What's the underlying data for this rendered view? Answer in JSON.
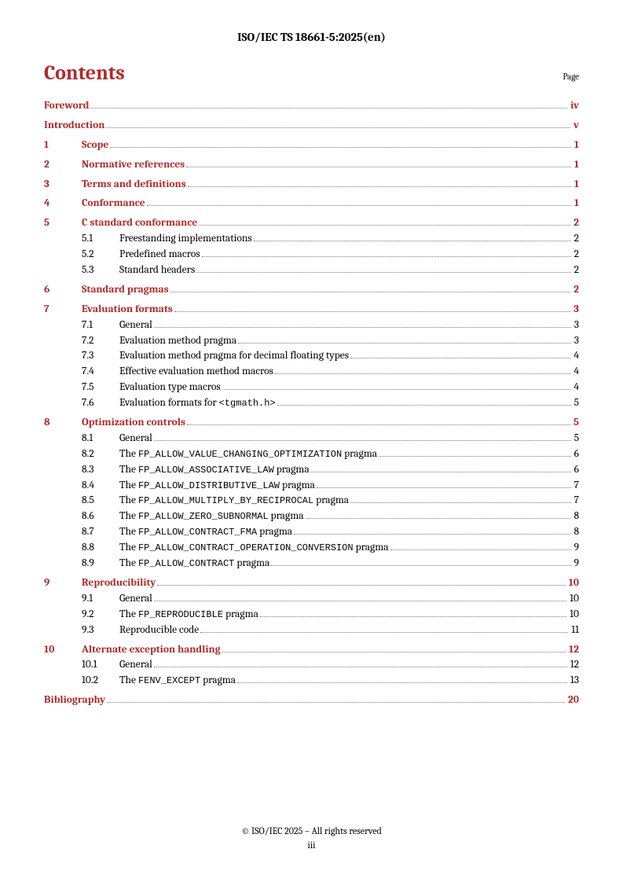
{
  "doc_id": "ISO/IEC TS 18661-5:2025(en)",
  "contents_title": "Contents",
  "page_label": "Page",
  "copyright": "© ISO/IEC 2025 – All rights reserved",
  "page_number": "iii",
  "toc": {
    "front": [
      {
        "title": "Foreword",
        "page": "iv"
      },
      {
        "title": "Introduction",
        "page": "v"
      }
    ],
    "sections": [
      {
        "num": "1",
        "title": "Scope",
        "page": "1",
        "subs": []
      },
      {
        "num": "2",
        "title": "Normative references",
        "page": "1",
        "subs": []
      },
      {
        "num": "3",
        "title": "Terms and definitions",
        "page": "1",
        "subs": []
      },
      {
        "num": "4",
        "title": "Conformance",
        "page": "1",
        "subs": []
      },
      {
        "num": "5",
        "title": "C standard conformance",
        "page": "2",
        "subs": [
          {
            "num": "5.1",
            "parts": [
              {
                "t": "Freestanding implementations"
              }
            ],
            "page": "2"
          },
          {
            "num": "5.2",
            "parts": [
              {
                "t": "Predefined macros"
              }
            ],
            "page": "2"
          },
          {
            "num": "5.3",
            "parts": [
              {
                "t": "Standard headers"
              }
            ],
            "page": "2"
          }
        ]
      },
      {
        "num": "6",
        "title": "Standard pragmas",
        "page": "2",
        "subs": []
      },
      {
        "num": "7",
        "title": "Evaluation formats",
        "page": "3",
        "subs": [
          {
            "num": "7.1",
            "parts": [
              {
                "t": "General"
              }
            ],
            "page": "3"
          },
          {
            "num": "7.2",
            "parts": [
              {
                "t": "Evaluation method pragma"
              }
            ],
            "page": "3"
          },
          {
            "num": "7.3",
            "parts": [
              {
                "t": "Evaluation method pragma for decimal floating types"
              }
            ],
            "page": "4"
          },
          {
            "num": "7.4",
            "parts": [
              {
                "t": "Effective evaluation method macros"
              }
            ],
            "page": "4"
          },
          {
            "num": "7.5",
            "parts": [
              {
                "t": "Evaluation type macros"
              }
            ],
            "page": "4"
          },
          {
            "num": "7.6",
            "parts": [
              {
                "t": "Evaluation formats for "
              },
              {
                "t": "<tgmath.h>",
                "code": true
              }
            ],
            "page": "5"
          }
        ]
      },
      {
        "num": "8",
        "title": "Optimization controls",
        "page": "5",
        "subs": [
          {
            "num": "8.1",
            "parts": [
              {
                "t": "General"
              }
            ],
            "page": "5"
          },
          {
            "num": "8.2",
            "parts": [
              {
                "t": "The "
              },
              {
                "t": "FP_ALLOW_VALUE_CHANGING_OPTIMIZATION",
                "code": true
              },
              {
                "t": " pragma"
              }
            ],
            "page": "6"
          },
          {
            "num": "8.3",
            "parts": [
              {
                "t": "The "
              },
              {
                "t": "FP_ALLOW_ASSOCIATIVE_LAW",
                "code": true
              },
              {
                "t": " pragma"
              }
            ],
            "page": "6"
          },
          {
            "num": "8.4",
            "parts": [
              {
                "t": "The "
              },
              {
                "t": "FP_ALLOW_DISTRIBUTIVE_LAW",
                "code": true
              },
              {
                "t": " pragma"
              }
            ],
            "page": "7"
          },
          {
            "num": "8.5",
            "parts": [
              {
                "t": "The "
              },
              {
                "t": "FP_ALLOW_MULTIPLY_BY_RECIPROCAL",
                "code": true
              },
              {
                "t": " pragma"
              }
            ],
            "page": "7"
          },
          {
            "num": "8.6",
            "parts": [
              {
                "t": "The "
              },
              {
                "t": "FP_ALLOW_ZERO_SUBNORMAL",
                "code": true
              },
              {
                "t": " pragma"
              }
            ],
            "page": "8"
          },
          {
            "num": "8.7",
            "parts": [
              {
                "t": "The "
              },
              {
                "t": "FP_ALLOW_CONTRACT_FMA",
                "code": true
              },
              {
                "t": " pragma"
              }
            ],
            "page": "8"
          },
          {
            "num": "8.8",
            "parts": [
              {
                "t": "The "
              },
              {
                "t": "FP_ALLOW_CONTRACT_OPERATION_CONVERSION",
                "code": true
              },
              {
                "t": " pragma"
              }
            ],
            "page": "9"
          },
          {
            "num": "8.9",
            "parts": [
              {
                "t": "The "
              },
              {
                "t": "FP_ALLOW_CONTRACT",
                "code": true
              },
              {
                "t": " pragma"
              }
            ],
            "page": "9"
          }
        ]
      },
      {
        "num": "9",
        "title": "Reproducibility",
        "page": "10",
        "subs": [
          {
            "num": "9.1",
            "parts": [
              {
                "t": "General"
              }
            ],
            "page": "10"
          },
          {
            "num": "9.2",
            "parts": [
              {
                "t": "The "
              },
              {
                "t": "FP_REPRODUCIBLE",
                "code": true
              },
              {
                "t": " pragma"
              }
            ],
            "page": "10"
          },
          {
            "num": "9.3",
            "parts": [
              {
                "t": "Reproducible code"
              }
            ],
            "page": "11"
          }
        ]
      },
      {
        "num": "10",
        "title": "Alternate exception handling",
        "page": "12",
        "subs": [
          {
            "num": "10.1",
            "parts": [
              {
                "t": "General"
              }
            ],
            "page": "12"
          },
          {
            "num": "10.2",
            "parts": [
              {
                "t": "The "
              },
              {
                "t": "FENV_EXCEPT",
                "code": true
              },
              {
                "t": " pragma"
              }
            ],
            "page": "13"
          }
        ]
      }
    ],
    "back": [
      {
        "title": "Bibliography",
        "page": "20"
      }
    ]
  }
}
